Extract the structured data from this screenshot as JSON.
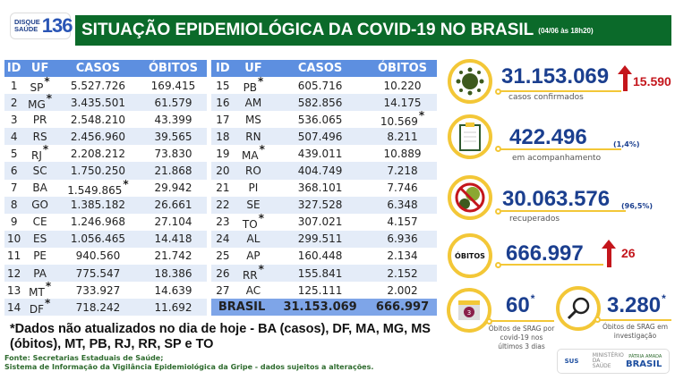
{
  "logo": {
    "line1": "DISQUE",
    "line2": "SAÚDE",
    "number": "136"
  },
  "header": {
    "title": "SITUAÇÃO EPIDEMIOLÓGICA DA COVID-19 NO BRASIL",
    "timestamp": "(04/06 às 18h20)"
  },
  "table": {
    "columns": [
      "ID",
      "UF",
      "CASOS",
      "ÓBITOS"
    ],
    "rows": [
      [
        "1",
        "SP",
        "5.527.726",
        "169.415",
        "uf"
      ],
      [
        "2",
        "MG",
        "3.435.501",
        "61.579",
        "uf"
      ],
      [
        "3",
        "PR",
        "2.548.210",
        "43.399",
        ""
      ],
      [
        "4",
        "RS",
        "2.456.960",
        "39.565",
        ""
      ],
      [
        "5",
        "RJ",
        "2.208.212",
        "73.830",
        "uf"
      ],
      [
        "6",
        "SC",
        "1.750.250",
        "21.868",
        ""
      ],
      [
        "7",
        "BA",
        "1.549.865",
        "29.942",
        "casos"
      ],
      [
        "8",
        "GO",
        "1.385.182",
        "26.661",
        ""
      ],
      [
        "9",
        "CE",
        "1.246.968",
        "27.104",
        ""
      ],
      [
        "10",
        "ES",
        "1.056.465",
        "14.418",
        ""
      ],
      [
        "11",
        "PE",
        "940.560",
        "21.742",
        ""
      ],
      [
        "12",
        "PA",
        "775.547",
        "18.386",
        ""
      ],
      [
        "13",
        "MT",
        "733.927",
        "14.639",
        "uf"
      ],
      [
        "14",
        "DF",
        "718.242",
        "11.692",
        "uf"
      ],
      [
        "15",
        "PB",
        "605.716",
        "10.220",
        "uf"
      ],
      [
        "16",
        "AM",
        "582.856",
        "14.175",
        ""
      ],
      [
        "17",
        "MS",
        "536.065",
        "10.569",
        "obitos"
      ],
      [
        "18",
        "RN",
        "507.496",
        "8.211",
        ""
      ],
      [
        "19",
        "MA",
        "439.011",
        "10.889",
        "uf"
      ],
      [
        "20",
        "RO",
        "404.749",
        "7.218",
        ""
      ],
      [
        "21",
        "PI",
        "368.101",
        "7.746",
        ""
      ],
      [
        "22",
        "SE",
        "327.528",
        "6.348",
        ""
      ],
      [
        "23",
        "TO",
        "307.021",
        "4.157",
        "uf"
      ],
      [
        "24",
        "AL",
        "299.511",
        "6.936",
        ""
      ],
      [
        "25",
        "AP",
        "160.448",
        "2.134",
        ""
      ],
      [
        "26",
        "RR",
        "155.841",
        "2.152",
        "uf"
      ],
      [
        "27",
        "AC",
        "125.111",
        "2.002",
        ""
      ]
    ],
    "total": {
      "label": "BRASIL",
      "casos": "31.153.069",
      "obitos": "666.997"
    },
    "asterisk": "*"
  },
  "stats": {
    "confirmed": {
      "value": "31.153.069",
      "delta": "15.590",
      "label": "casos confirmados",
      "icon": "virus-icon"
    },
    "monitoring": {
      "value": "422.496",
      "pct": "(1,4%)",
      "label": "em acompanhamento",
      "icon": "clipboard-icon"
    },
    "recovered": {
      "value": "30.063.576",
      "pct": "(96,5%)",
      "label": "recuperados",
      "icon": "no-virus-icon"
    },
    "deaths": {
      "badge": "ÓBITOS",
      "value": "666.997",
      "delta": "26"
    },
    "srag_recent": {
      "value": "60",
      "asterisk": "*",
      "label": "Óbitos de SRAG por covid-19 nos últimos 3 dias",
      "calendar_day": "3"
    },
    "srag_investigation": {
      "value": "3.280",
      "asterisk": "*",
      "label": "Óbitos de SRAG em investigação"
    }
  },
  "note": "*Dados não atualizados no dia de hoje - BA (casos), DF, MA, MG, MS (óbitos), MT, PB, RJ, RR, SP e TO",
  "source": {
    "line1": "Fonte: Secretarias Estaduais de Saúde;",
    "line2": "Sistema de Informação da Vigilância Epidemiológica da Gripe - dados sujeitos a alterações."
  },
  "footer_logos": {
    "sus": "SUS",
    "ministry": "MINISTÉRIO DA SAÚDE",
    "brasil": "BRASIL",
    "motto": "PÁTRIA AMADA"
  },
  "colors": {
    "header_green": "#0b6a2a",
    "table_blue": "#5d8fe0",
    "number_blue": "#1b3f8f",
    "accent_yellow": "#f3c737",
    "alert_red": "#c4161c"
  }
}
